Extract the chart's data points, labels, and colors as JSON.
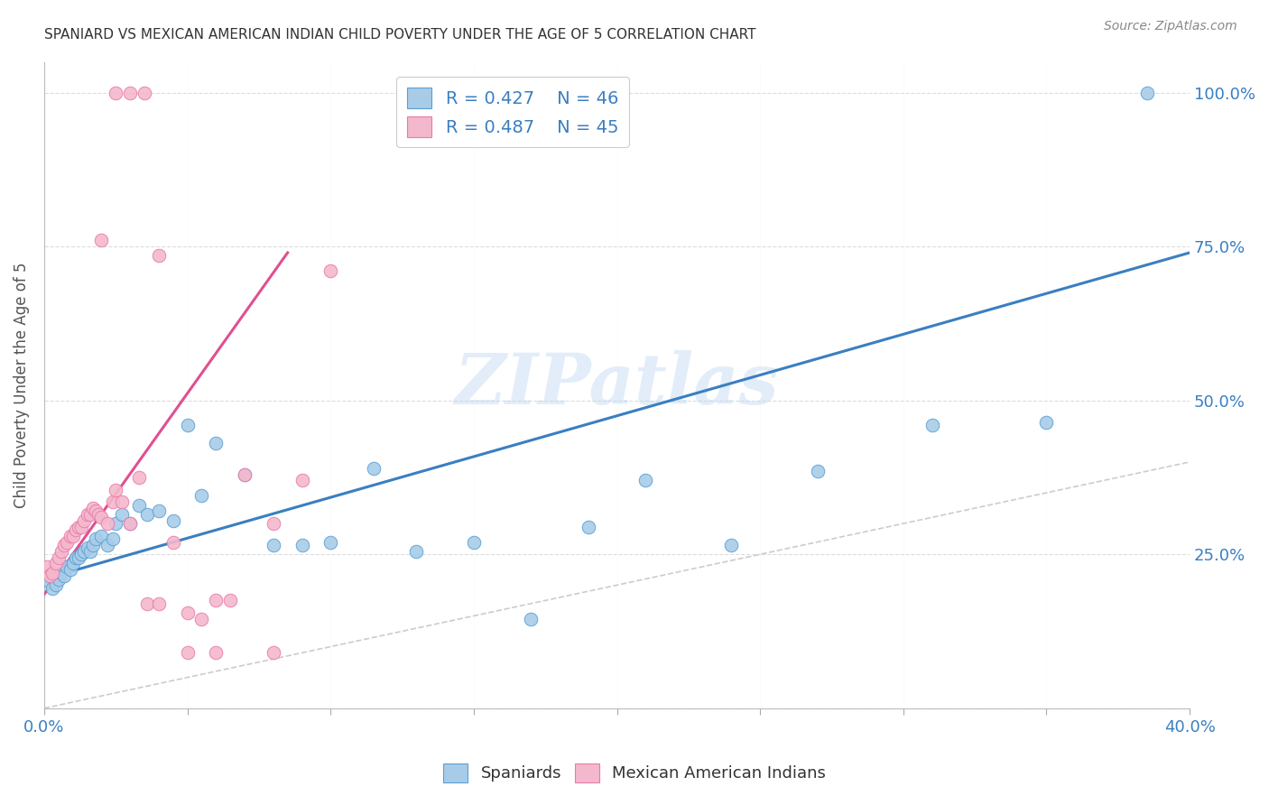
{
  "title": "SPANIARD VS MEXICAN AMERICAN INDIAN CHILD POVERTY UNDER THE AGE OF 5 CORRELATION CHART",
  "source": "Source: ZipAtlas.com",
  "ylabel": "Child Poverty Under the Age of 5",
  "xlim": [
    0.0,
    0.4
  ],
  "ylim": [
    0.0,
    1.05
  ],
  "blue_color": "#a8cce8",
  "pink_color": "#f4b8cc",
  "blue_edge_color": "#5a9fd4",
  "pink_edge_color": "#e87aaa",
  "blue_line_color": "#3a7fc1",
  "pink_line_color": "#e05090",
  "diag_color": "#cccccc",
  "legend_R_blue": "R = 0.427",
  "legend_N_blue": "N = 46",
  "legend_R_pink": "R = 0.487",
  "legend_N_pink": "N = 45",
  "watermark": "ZIPatlas",
  "blue_scatter_x": [
    0.001,
    0.002,
    0.003,
    0.004,
    0.005,
    0.006,
    0.007,
    0.008,
    0.009,
    0.01,
    0.011,
    0.012,
    0.013,
    0.014,
    0.015,
    0.016,
    0.017,
    0.018,
    0.02,
    0.022,
    0.024,
    0.025,
    0.027,
    0.03,
    0.033,
    0.036,
    0.04,
    0.045,
    0.05,
    0.055,
    0.06,
    0.07,
    0.08,
    0.09,
    0.1,
    0.115,
    0.13,
    0.15,
    0.17,
    0.19,
    0.21,
    0.24,
    0.27,
    0.31,
    0.35,
    0.385
  ],
  "blue_scatter_y": [
    0.215,
    0.205,
    0.195,
    0.2,
    0.21,
    0.22,
    0.215,
    0.23,
    0.225,
    0.235,
    0.245,
    0.245,
    0.25,
    0.255,
    0.26,
    0.255,
    0.265,
    0.275,
    0.28,
    0.265,
    0.275,
    0.3,
    0.315,
    0.3,
    0.33,
    0.315,
    0.32,
    0.305,
    0.46,
    0.345,
    0.43,
    0.38,
    0.265,
    0.265,
    0.27,
    0.39,
    0.255,
    0.27,
    0.145,
    0.295,
    0.37,
    0.265,
    0.385,
    0.46,
    0.465,
    1.0
  ],
  "blue_trendline_x": [
    0.0,
    0.4
  ],
  "blue_trendline_y": [
    0.21,
    0.74
  ],
  "pink_scatter_x": [
    0.001,
    0.002,
    0.003,
    0.004,
    0.005,
    0.006,
    0.007,
    0.008,
    0.009,
    0.01,
    0.011,
    0.012,
    0.013,
    0.014,
    0.015,
    0.016,
    0.017,
    0.018,
    0.019,
    0.02,
    0.022,
    0.024,
    0.025,
    0.027,
    0.03,
    0.033,
    0.036,
    0.04,
    0.045,
    0.05,
    0.055,
    0.06,
    0.065,
    0.07,
    0.08,
    0.09,
    0.1,
    0.02,
    0.025,
    0.03,
    0.035,
    0.04,
    0.05,
    0.06,
    0.08
  ],
  "pink_scatter_y": [
    0.23,
    0.215,
    0.22,
    0.235,
    0.245,
    0.255,
    0.265,
    0.27,
    0.28,
    0.28,
    0.29,
    0.295,
    0.295,
    0.305,
    0.315,
    0.315,
    0.325,
    0.32,
    0.315,
    0.31,
    0.3,
    0.335,
    0.355,
    0.335,
    0.3,
    0.375,
    0.17,
    0.17,
    0.27,
    0.155,
    0.145,
    0.175,
    0.175,
    0.38,
    0.3,
    0.37,
    0.71,
    0.76,
    1.0,
    1.0,
    1.0,
    0.735,
    0.09,
    0.09,
    0.09
  ],
  "pink_trendline_x": [
    0.0,
    0.085
  ],
  "pink_trendline_y": [
    0.185,
    0.74
  ]
}
